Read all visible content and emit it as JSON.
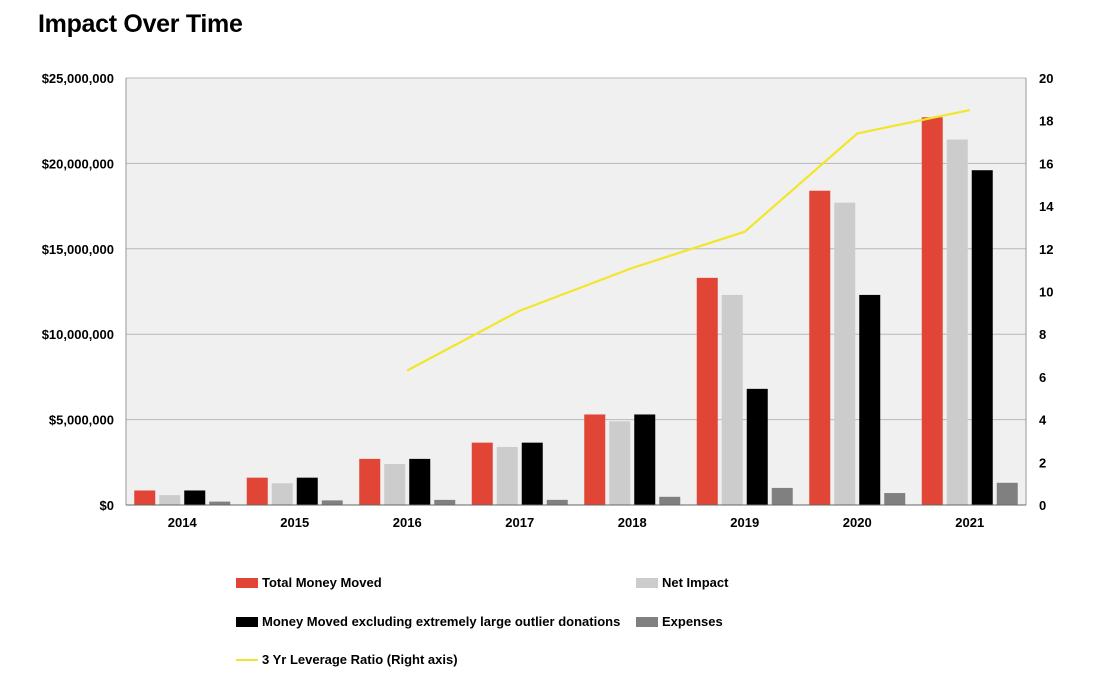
{
  "title": "Impact Over Time",
  "colors": {
    "total": "#e04535",
    "net": "#cccccc",
    "excl": "#000000",
    "expenses": "#808080",
    "leverage": "#f2e62a",
    "plot_bg": "#f0f0f0",
    "grid": "#b8b8b8"
  },
  "legend": {
    "total": "Total Money Moved",
    "net": "Net Impact",
    "excl": "Money Moved excluding extremely large outlier donations",
    "expenses": "Expenses",
    "leverage": "3 Yr Leverage Ratio (Right axis)"
  },
  "chart_data": {
    "type": "bar",
    "title": "Impact Over Time",
    "categories": [
      "2014",
      "2015",
      "2016",
      "2017",
      "2018",
      "2019",
      "2020",
      "2021"
    ],
    "ylim": [
      0,
      25000000
    ],
    "y_ticks": [
      "$0",
      "$5,000,000",
      "$10,000,000",
      "$15,000,000",
      "$20,000,000",
      "$25,000,000"
    ],
    "y2lim": [
      0,
      20
    ],
    "y2_ticks": [
      "0",
      "2",
      "4",
      "6",
      "8",
      "10",
      "12",
      "14",
      "16",
      "18",
      "20"
    ],
    "grid": true,
    "legend_position": "bottom",
    "series": [
      {
        "name": "Total Money Moved",
        "type": "bar",
        "values": [
          850000,
          1600000,
          2700000,
          3650000,
          5300000,
          13300000,
          18400000,
          22700000
        ]
      },
      {
        "name": "Net Impact",
        "type": "bar",
        "values": [
          580000,
          1270000,
          2400000,
          3400000,
          4900000,
          12300000,
          17700000,
          21400000
        ]
      },
      {
        "name": "Money Moved excluding extremely large outlier donations",
        "type": "bar",
        "values": [
          850000,
          1600000,
          2700000,
          3650000,
          5300000,
          6800000,
          12300000,
          19600000
        ]
      },
      {
        "name": "Expenses",
        "type": "bar",
        "values": [
          200000,
          270000,
          300000,
          300000,
          480000,
          1000000,
          700000,
          1300000
        ]
      },
      {
        "name": "3 Yr Leverage Ratio (Right axis)",
        "type": "line",
        "axis": "right",
        "values": [
          null,
          null,
          6.3,
          9.1,
          11.1,
          12.8,
          17.4,
          18.5
        ]
      }
    ]
  }
}
